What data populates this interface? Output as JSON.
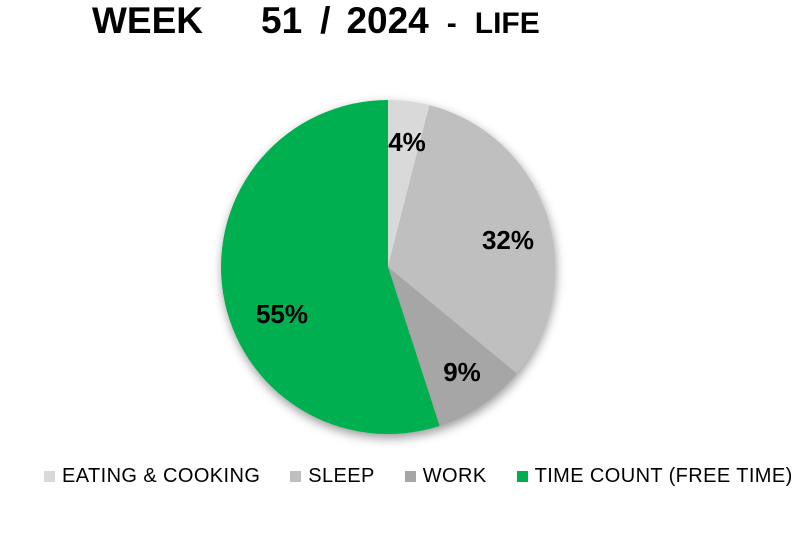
{
  "title": {
    "part_week": "WEEK",
    "part_number": "51",
    "part_slash": "/",
    "part_year": "2024",
    "part_dash": "-",
    "part_suffix": "LIFE",
    "full": "WEEK 51 / 2024 - LIFE"
  },
  "chart_data": {
    "type": "pie",
    "title": "WEEK 51 / 2024 - LIFE",
    "total": 100,
    "start_angle_deg": 0,
    "direction": "clockwise",
    "legend_position": "bottom",
    "data_labels": "percent",
    "background_color": "#FFFFFF",
    "slices": [
      {
        "name": "EATING & COOKING",
        "value": 4,
        "label": "4%",
        "color": "#D9D9D9"
      },
      {
        "name": "SLEEP",
        "value": 32,
        "label": "32%",
        "color": "#BFBFBF"
      },
      {
        "name": "WORK",
        "value": 9,
        "label": "9%",
        "color": "#A6A6A6"
      },
      {
        "name": "TIME COUNT (FREE TIME)",
        "value": 55,
        "label": "55%",
        "color": "#00B050"
      }
    ]
  }
}
